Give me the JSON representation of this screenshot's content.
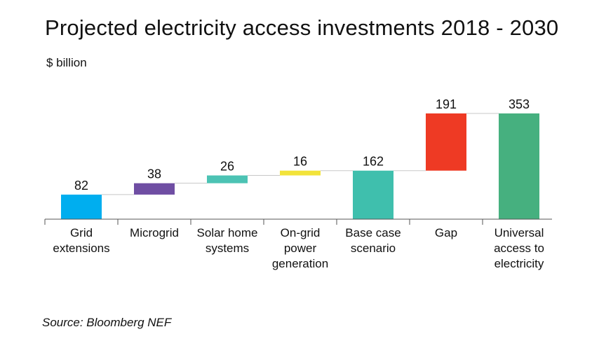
{
  "chart_data": {
    "type": "bar",
    "subtype": "waterfall",
    "title": "Projected electricity access investments 2018 - 2030",
    "ylabel": "$ billion",
    "xlabel": "",
    "source": "Source: Bloomberg NEF",
    "categories": [
      [
        "Grid",
        "extensions"
      ],
      [
        "Microgrid"
      ],
      [
        "Solar home",
        "systems"
      ],
      [
        "On-grid",
        "power",
        "generation"
      ],
      [
        "Base case",
        "scenario"
      ],
      [
        "Gap"
      ],
      [
        "Universal",
        "access to",
        "electricity"
      ]
    ],
    "values": [
      82,
      38,
      26,
      16,
      162,
      191,
      353
    ],
    "kinds": [
      "increment",
      "increment",
      "increment",
      "increment",
      "total",
      "increment",
      "total"
    ],
    "colors": [
      "#00aeef",
      "#6f4ea3",
      "#4cc3b4",
      "#f2e33a",
      "#3fbfad",
      "#ee3a24",
      "#46b07f"
    ],
    "ylim": [
      0,
      353
    ],
    "grid": false,
    "legend": "none"
  }
}
